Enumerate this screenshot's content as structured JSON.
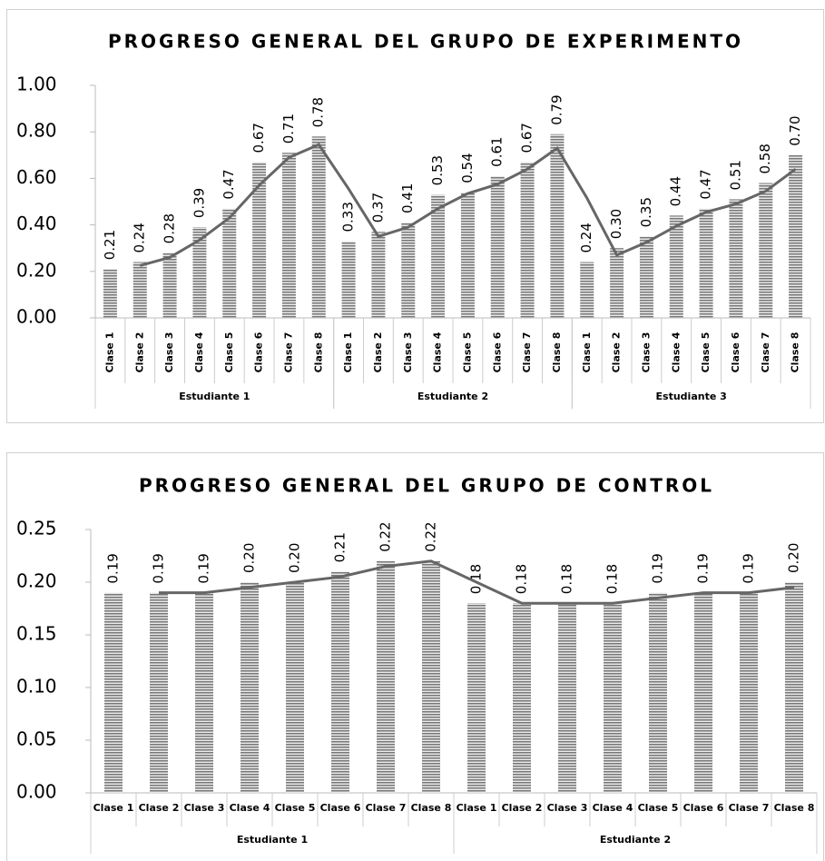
{
  "chart_data": [
    {
      "type": "bar",
      "title": "PROGRESO GENERAL DEL GRUPO DE EXPERIMENTO",
      "groups": [
        {
          "name": "Estudiante 1",
          "categories": [
            "Clase 1",
            "Clase 2",
            "Clase 3",
            "Clase 4",
            "Clase 5",
            "Clase 6",
            "Clase 7",
            "Clase 8"
          ]
        },
        {
          "name": "Estudiante 2",
          "categories": [
            "Clase 1",
            "Clase 2",
            "Clase 3",
            "Clase 4",
            "Clase 5",
            "Clase 6",
            "Clase 7",
            "Clase 8"
          ]
        },
        {
          "name": "Estudiante 3",
          "categories": [
            "Clase 1",
            "Clase 2",
            "Clase 3",
            "Clase 4",
            "Clase 5",
            "Clase 6",
            "Clase 7",
            "Clase 8"
          ]
        }
      ],
      "values": [
        0.21,
        0.24,
        0.28,
        0.39,
        0.47,
        0.67,
        0.71,
        0.78,
        0.33,
        0.37,
        0.41,
        0.53,
        0.54,
        0.61,
        0.67,
        0.79,
        0.24,
        0.3,
        0.35,
        0.44,
        0.47,
        0.51,
        0.58,
        0.7
      ],
      "value_labels": [
        "0.21",
        "0.24",
        "0.28",
        "0.39",
        "0.47",
        "0.67",
        "0.71",
        "0.78",
        "0.33",
        "0.37",
        "0.41",
        "0.53",
        "0.54",
        "0.61",
        "0.67",
        "0.79",
        "0.24",
        "0.30",
        "0.35",
        "0.44",
        "0.47",
        "0.51",
        "0.58",
        "0.70"
      ],
      "color": "#777777",
      "trendline_color": "#666666",
      "moving_average_period": 2,
      "ylim": [
        0,
        1
      ],
      "yticks": [
        {
          "value": 0,
          "label": "0.00"
        },
        {
          "value": 0.2,
          "label": "0.20"
        },
        {
          "value": 0.4,
          "label": "0.40"
        },
        {
          "value": 0.6,
          "label": "0.60"
        },
        {
          "value": 0.8,
          "label": "0.80"
        },
        {
          "value": 1,
          "label": "1.00"
        }
      ]
    },
    {
      "type": "bar",
      "title": "PROGRESO GENERAL DEL GRUPO DE CONTROL",
      "groups": [
        {
          "name": "Estudiante 1",
          "categories": [
            "Clase 1",
            "Clase 2",
            "Clase 3",
            "Clase 4",
            "Clase 5",
            "Clase 6",
            "Clase 7",
            "Clase 8"
          ]
        },
        {
          "name": "Estudiante 2",
          "categories": [
            "Clase 1",
            "Clase 2",
            "Clase 3",
            "Clase 4",
            "Clase 5",
            "Clase 6",
            "Clase 7",
            "Clase 8"
          ]
        }
      ],
      "values": [
        0.19,
        0.19,
        0.19,
        0.2,
        0.2,
        0.21,
        0.22,
        0.22,
        0.18,
        0.18,
        0.18,
        0.18,
        0.19,
        0.19,
        0.19,
        0.2
      ],
      "value_labels": [
        "0.19",
        "0.19",
        "0.19",
        "0.20",
        "0.20",
        "0.21",
        "0.22",
        "0.22",
        "0.18",
        "0.18",
        "0.18",
        "0.18",
        "0.19",
        "0.19",
        "0.19",
        "0.20"
      ],
      "color": "#777777",
      "trendline_color": "#666666",
      "moving_average_period": 2,
      "ylim": [
        0,
        0.25
      ],
      "yticks": [
        {
          "value": 0,
          "label": "0.00"
        },
        {
          "value": 0.05,
          "label": "0.05"
        },
        {
          "value": 0.1,
          "label": "0.10"
        },
        {
          "value": 0.15,
          "label": "0.15"
        },
        {
          "value": 0.2,
          "label": "0.20"
        },
        {
          "value": 0.25,
          "label": "0.25"
        }
      ]
    }
  ]
}
